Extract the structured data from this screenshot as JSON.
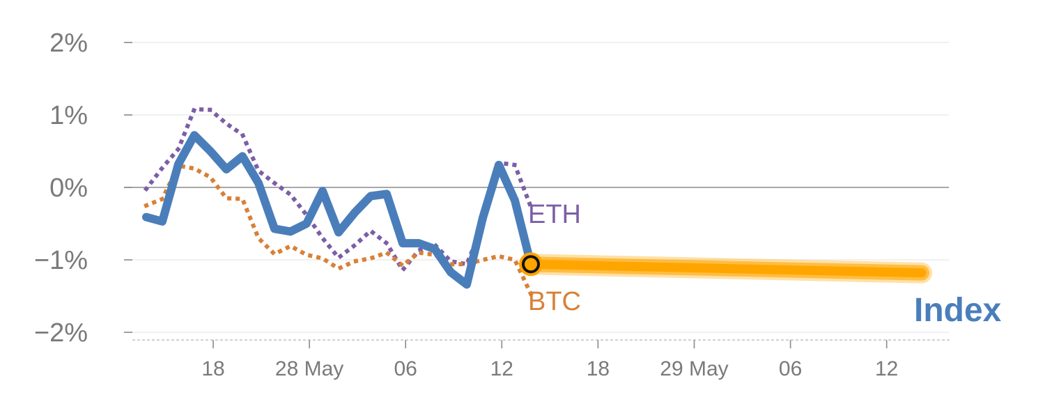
{
  "chart_data": {
    "type": "line",
    "y_unit": "%",
    "ylim": [
      -2,
      2
    ],
    "y_ticks": [
      {
        "value": 2,
        "label": "2%"
      },
      {
        "value": 1,
        "label": "1%"
      },
      {
        "value": 0,
        "label": "0%"
      },
      {
        "value": -1,
        "label": "−1%"
      },
      {
        "value": -2,
        "label": "−2%"
      }
    ],
    "x_ticks": [
      "18",
      "28 May",
      "06",
      "12",
      "18",
      "29 May",
      "06",
      "12"
    ],
    "grid": true,
    "colors": {
      "index": "#4a7ebb",
      "eth": "#7b5ea7",
      "btc": "#d98036",
      "forecast": "#ffa500",
      "axis": "#7a7a7a"
    },
    "series": [
      {
        "name": "Index",
        "style": "solid",
        "values": [
          -0.41,
          -0.47,
          0.32,
          0.72,
          0.5,
          0.25,
          0.43,
          0.06,
          -0.57,
          -0.61,
          -0.5,
          -0.05,
          -0.62,
          -0.35,
          -0.12,
          -0.09,
          -0.77,
          -0.77,
          -0.85,
          -1.17,
          -1.34,
          -0.42,
          0.31,
          -0.18,
          -1.06
        ]
      },
      {
        "name": "ETH",
        "style": "dotted",
        "values": [
          -0.02,
          0.27,
          0.53,
          1.08,
          1.07,
          0.88,
          0.73,
          0.23,
          0.06,
          -0.1,
          -0.38,
          -0.7,
          -0.97,
          -0.8,
          -0.6,
          -0.77,
          -1.14,
          -0.87,
          -0.79,
          -1.02,
          -1.06,
          -0.52,
          0.34,
          0.31,
          -0.27
        ]
      },
      {
        "name": "BTC",
        "style": "dotted",
        "values": [
          -0.25,
          -0.16,
          0.3,
          0.26,
          0.14,
          -0.15,
          -0.16,
          -0.7,
          -0.92,
          -0.81,
          -0.93,
          -0.98,
          -1.12,
          -1.02,
          -0.98,
          -0.9,
          -1.08,
          -0.9,
          -0.93,
          -1.06,
          -1.06,
          -1.0,
          -0.95,
          -1.0,
          -1.47
        ]
      },
      {
        "name": "Index forecast",
        "style": "band",
        "values": [
          -1.06,
          -1.18
        ]
      }
    ],
    "annotations": [
      {
        "text": "ETH",
        "series": "ETH"
      },
      {
        "text": "BTC",
        "series": "BTC"
      },
      {
        "text": "Index",
        "series": "Index"
      }
    ]
  }
}
